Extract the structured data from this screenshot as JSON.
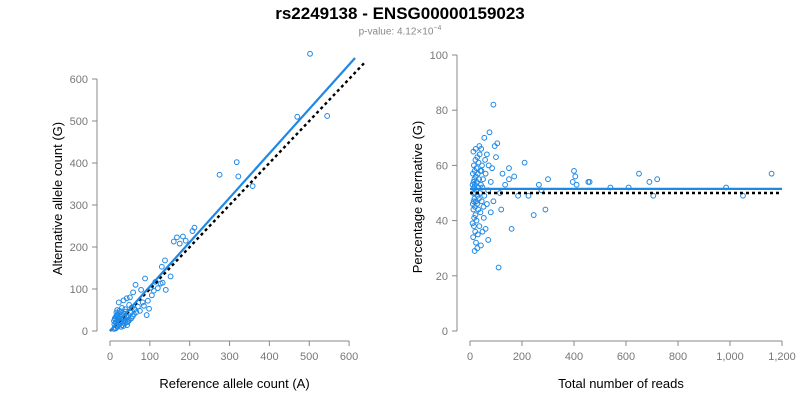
{
  "header": {
    "title": "rs2249138 - ENSG00000159023",
    "pvalue_prefix": "p-value: 4.12×10",
    "pvalue_exp": "−4"
  },
  "colors": {
    "points": "#1e88e5",
    "fit": "#1e88e5",
    "reference_line": "#000000"
  },
  "chart_data": [
    {
      "type": "scatter",
      "xlabel": "Reference allele count (A)",
      "ylabel": "Alternative allele count (G)",
      "xlim": [
        0,
        650
      ],
      "ylim": [
        0,
        650
      ],
      "xticks": [
        0,
        100,
        200,
        300,
        400,
        500,
        600
      ],
      "yticks": [
        0,
        100,
        200,
        300,
        400,
        500,
        600
      ],
      "xtick_labels": [
        "0",
        "100",
        "200",
        "300",
        "400",
        "500",
        "600"
      ],
      "ytick_labels": [
        "0",
        "100",
        "200",
        "300",
        "400",
        "500",
        "600"
      ],
      "fit_line": {
        "x": [
          0,
          615
        ],
        "y": [
          0,
          650
        ]
      },
      "reference_line": {
        "x": [
          0,
          640
        ],
        "y": [
          0,
          640
        ]
      },
      "points": [
        [
          502,
          660
        ],
        [
          470,
          510
        ],
        [
          545,
          512
        ],
        [
          318,
          402
        ],
        [
          275,
          372
        ],
        [
          322,
          368
        ],
        [
          358,
          345
        ],
        [
          212,
          246
        ],
        [
          207,
          238
        ],
        [
          183,
          225
        ],
        [
          168,
          223
        ],
        [
          190,
          215
        ],
        [
          160,
          213
        ],
        [
          175,
          208
        ],
        [
          138,
          168
        ],
        [
          130,
          153
        ],
        [
          152,
          130
        ],
        [
          127,
          113
        ],
        [
          114,
          117
        ],
        [
          103,
          103
        ],
        [
          88,
          125
        ],
        [
          78,
          98
        ],
        [
          64,
          110
        ],
        [
          58,
          92
        ],
        [
          50,
          80
        ],
        [
          42,
          78
        ],
        [
          34,
          73
        ],
        [
          22,
          68
        ],
        [
          18,
          50
        ],
        [
          140,
          98
        ],
        [
          98,
          53
        ],
        [
          92,
          38
        ],
        [
          75,
          48
        ],
        [
          60,
          40
        ],
        [
          55,
          56
        ],
        [
          48,
          62
        ],
        [
          45,
          33
        ],
        [
          40,
          46
        ],
        [
          36,
          40
        ],
        [
          32,
          28
        ],
        [
          30,
          55
        ],
        [
          28,
          38
        ],
        [
          26,
          22
        ],
        [
          24,
          30
        ],
        [
          22,
          42
        ],
        [
          20,
          18
        ],
        [
          18,
          26
        ],
        [
          16,
          12
        ],
        [
          15,
          34
        ],
        [
          14,
          20
        ],
        [
          12,
          8
        ],
        [
          11,
          16
        ],
        [
          10,
          24
        ],
        [
          10,
          5
        ],
        [
          13,
          28
        ],
        [
          17,
          36
        ],
        [
          19,
          10
        ],
        [
          21,
          25
        ],
        [
          23,
          15
        ],
        [
          25,
          34
        ],
        [
          27,
          19
        ],
        [
          29,
          28
        ],
        [
          31,
          14
        ],
        [
          33,
          22
        ],
        [
          35,
          31
        ],
        [
          37,
          18
        ],
        [
          39,
          25
        ],
        [
          41,
          33
        ],
        [
          44,
          21
        ],
        [
          46,
          38
        ],
        [
          49,
          27
        ],
        [
          52,
          43
        ],
        [
          57,
          35
        ],
        [
          62,
          52
        ],
        [
          66,
          45
        ],
        [
          70,
          58
        ],
        [
          82,
          68
        ],
        [
          85,
          60
        ],
        [
          95,
          72
        ],
        [
          105,
          85
        ],
        [
          110,
          96
        ],
        [
          120,
          102
        ],
        [
          132,
          115
        ],
        [
          16,
          44
        ],
        [
          20,
          33
        ],
        [
          24,
          48
        ],
        [
          28,
          10
        ],
        [
          34,
          12
        ],
        [
          38,
          52
        ],
        [
          43,
          14
        ],
        [
          47,
          24
        ],
        [
          53,
          30
        ],
        [
          12,
          30
        ],
        [
          14,
          6
        ],
        [
          19,
          40
        ],
        [
          26,
          44
        ]
      ]
    },
    {
      "type": "scatter",
      "xlabel": "Total number of reads",
      "ylabel": "Percentage alternative (G)",
      "xlim": [
        0,
        1200
      ],
      "ylim": [
        0,
        100
      ],
      "xticks": [
        0,
        200,
        400,
        600,
        800,
        1000,
        1200
      ],
      "yticks": [
        0,
        20,
        40,
        60,
        80,
        100
      ],
      "xtick_labels": [
        "0",
        "200",
        "400",
        "600",
        "800",
        "1,000",
        "1,200"
      ],
      "ytick_labels": [
        "0",
        "20",
        "40",
        "60",
        "80",
        "100"
      ],
      "fit_line": {
        "x": [
          0,
          1200
        ],
        "y": [
          51.5,
          51.5
        ]
      },
      "reference_line": {
        "x": [
          0,
          1200
        ],
        "y": [
          50,
          50
        ]
      },
      "points": [
        [
          1160,
          57
        ],
        [
          1050,
          49
        ],
        [
          985,
          52
        ],
        [
          720,
          55
        ],
        [
          705,
          49
        ],
        [
          690,
          54
        ],
        [
          650,
          57
        ],
        [
          610,
          52
        ],
        [
          540,
          52
        ],
        [
          460,
          54
        ],
        [
          455,
          54
        ],
        [
          405,
          56
        ],
        [
          400,
          58
        ],
        [
          395,
          54
        ],
        [
          410,
          53
        ],
        [
          300,
          55
        ],
        [
          290,
          44
        ],
        [
          275,
          51
        ],
        [
          265,
          53
        ],
        [
          245,
          42
        ],
        [
          225,
          49
        ],
        [
          210,
          61
        ],
        [
          185,
          49
        ],
        [
          170,
          56
        ],
        [
          160,
          37
        ],
        [
          150,
          59
        ],
        [
          150,
          55
        ],
        [
          135,
          53
        ],
        [
          125,
          57
        ],
        [
          120,
          44
        ],
        [
          115,
          50
        ],
        [
          105,
          68
        ],
        [
          100,
          63
        ],
        [
          95,
          67
        ],
        [
          90,
          82
        ],
        [
          85,
          59
        ],
        [
          80,
          54
        ],
        [
          75,
          72
        ],
        [
          70,
          51
        ],
        [
          65,
          46
        ],
        [
          60,
          57
        ],
        [
          58,
          62
        ],
        [
          55,
          49
        ],
        [
          53,
          41
        ],
        [
          50,
          55
        ],
        [
          48,
          52
        ],
        [
          46,
          60
        ],
        [
          45,
          47
        ],
        [
          43,
          66
        ],
        [
          42,
          53
        ],
        [
          40,
          43
        ],
        [
          40,
          58
        ],
        [
          38,
          50
        ],
        [
          37,
          64
        ],
        [
          36,
          38
        ],
        [
          35,
          55
        ],
        [
          34,
          48
        ],
        [
          33,
          61
        ],
        [
          32,
          44
        ],
        [
          31,
          52
        ],
        [
          30,
          57
        ],
        [
          30,
          35
        ],
        [
          29,
          49
        ],
        [
          28,
          63
        ],
        [
          27,
          46
        ],
        [
          26,
          54
        ],
        [
          25,
          40
        ],
        [
          25,
          59
        ],
        [
          24,
          51
        ],
        [
          23,
          32
        ],
        [
          23,
          47
        ],
        [
          22,
          56
        ],
        [
          21,
          42
        ],
        [
          21,
          62
        ],
        [
          20,
          50
        ],
        [
          20,
          36
        ],
        [
          19,
          53
        ],
        [
          19,
          45
        ],
        [
          18,
          58
        ],
        [
          18,
          29
        ],
        [
          17,
          48
        ],
        [
          17,
          55
        ],
        [
          16,
          41
        ],
        [
          16,
          52
        ],
        [
          15,
          60
        ],
        [
          15,
          38
        ],
        [
          14,
          47
        ],
        [
          14,
          54
        ],
        [
          13,
          44
        ],
        [
          13,
          65
        ],
        [
          12,
          50
        ],
        [
          12,
          34
        ],
        [
          11,
          57
        ],
        [
          11,
          46
        ],
        [
          10,
          53
        ],
        [
          10,
          39
        ],
        [
          60,
          37
        ],
        [
          70,
          33
        ],
        [
          80,
          43
        ],
        [
          90,
          47
        ],
        [
          110,
          23
        ],
        [
          65,
          64
        ],
        [
          72,
          60
        ],
        [
          55,
          70
        ],
        [
          48,
          36
        ],
        [
          42,
          31
        ],
        [
          36,
          67
        ],
        [
          28,
          30
        ],
        [
          22,
          66
        ],
        [
          44,
          58
        ],
        [
          52,
          45
        ]
      ]
    }
  ]
}
